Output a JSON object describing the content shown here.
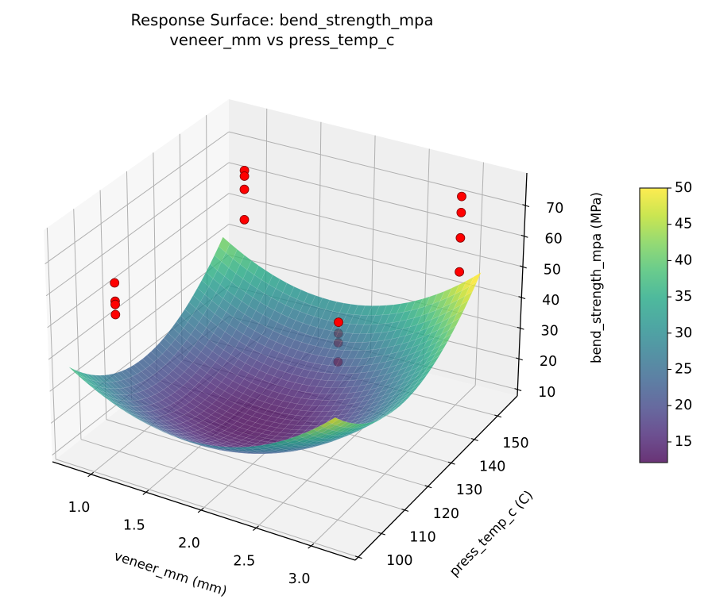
{
  "chart_data": {
    "type": "surface3d",
    "title": "Response Surface: bend_strength_mpa",
    "subtitle": "veneer_mm vs press_temp_c",
    "xlabel": "veneer_mm (mm)",
    "ylabel": "press_temp_c (C)",
    "zlabel": "bend_strength_mpa (MPa)",
    "xlim": [
      0.65,
      3.4
    ],
    "ylim": [
      98.7,
      168.5
    ],
    "zlim": [
      7.9,
      80.6
    ],
    "grid": true,
    "xticks": {
      "values": [
        1.0,
        1.5,
        2.0,
        2.5,
        3.0
      ],
      "labels": [
        "1.0",
        "1.5",
        "2.0",
        "2.5",
        "3.0"
      ]
    },
    "yticks": {
      "values": [
        100,
        110,
        120,
        130,
        140,
        150
      ],
      "labels": [
        "100",
        "110",
        "120",
        "130",
        "140",
        "150"
      ],
      "unlabeled_values": [
        160
      ]
    },
    "zticks": {
      "values": [
        10,
        20,
        30,
        40,
        50,
        60,
        70
      ],
      "labels": [
        "10",
        "20",
        "30",
        "40",
        "50",
        "60",
        "70"
      ]
    },
    "surface": {
      "x": [
        0.8,
        1.4,
        2.0,
        2.6,
        3.2
      ],
      "y": [
        100,
        115,
        130,
        145,
        160
      ],
      "z": [
        [
          38.5,
          29.0,
          27.5,
          34.0,
          48.5
        ],
        [
          26.75,
          17.25,
          15.75,
          22.25,
          36.75
        ],
        [
          23.5,
          14.0,
          12.5,
          19.0,
          33.5
        ],
        [
          28.75,
          19.25,
          17.75,
          24.25,
          38.75
        ],
        [
          42.5,
          33.0,
          31.5,
          38.0,
          52.5
        ]
      ],
      "colormap": "viridis",
      "colormap_stops": [
        "#440154",
        "#482475",
        "#414487",
        "#355f8d",
        "#2a788e",
        "#21918c",
        "#22a884",
        "#44bf70",
        "#7ad151",
        "#bddf26",
        "#fde725"
      ],
      "alpha": 0.8
    },
    "scatter": {
      "color": "#ff0000",
      "edgecolor": "#7a0000",
      "points": [
        {
          "x": 1.0,
          "y": 110,
          "z": 60.9
        },
        {
          "x": 1.0,
          "y": 110,
          "z": 55.1
        },
        {
          "x": 1.0,
          "y": 110,
          "z": 54.1
        },
        {
          "x": 1.0,
          "y": 110,
          "z": 50.9
        },
        {
          "x": 1.0,
          "y": 160,
          "z": 65.8
        },
        {
          "x": 1.0,
          "y": 160,
          "z": 64.0
        },
        {
          "x": 1.0,
          "y": 160,
          "z": 59.7
        },
        {
          "x": 1.0,
          "y": 160,
          "z": 49.9
        },
        {
          "x": 3.0,
          "y": 160,
          "z": 75.3
        },
        {
          "x": 3.0,
          "y": 160,
          "z": 70.1
        },
        {
          "x": 3.0,
          "y": 160,
          "z": 61.9
        },
        {
          "x": 3.0,
          "y": 160,
          "z": 50.9
        },
        {
          "x": 2.0,
          "y": 155,
          "z": 29.1
        },
        {
          "x": 2.0,
          "y": 155,
          "z": 25.5
        },
        {
          "x": 2.0,
          "y": 155,
          "z": 22.5
        },
        {
          "x": 2.0,
          "y": 155,
          "z": 16.3
        }
      ]
    },
    "colorbar": {
      "range": [
        12.15,
        50
      ],
      "ticks": [
        15,
        20,
        25,
        30,
        35,
        40,
        45,
        50
      ],
      "labels": [
        "15",
        "20",
        "25",
        "30",
        "35",
        "40",
        "45",
        "50"
      ]
    }
  }
}
